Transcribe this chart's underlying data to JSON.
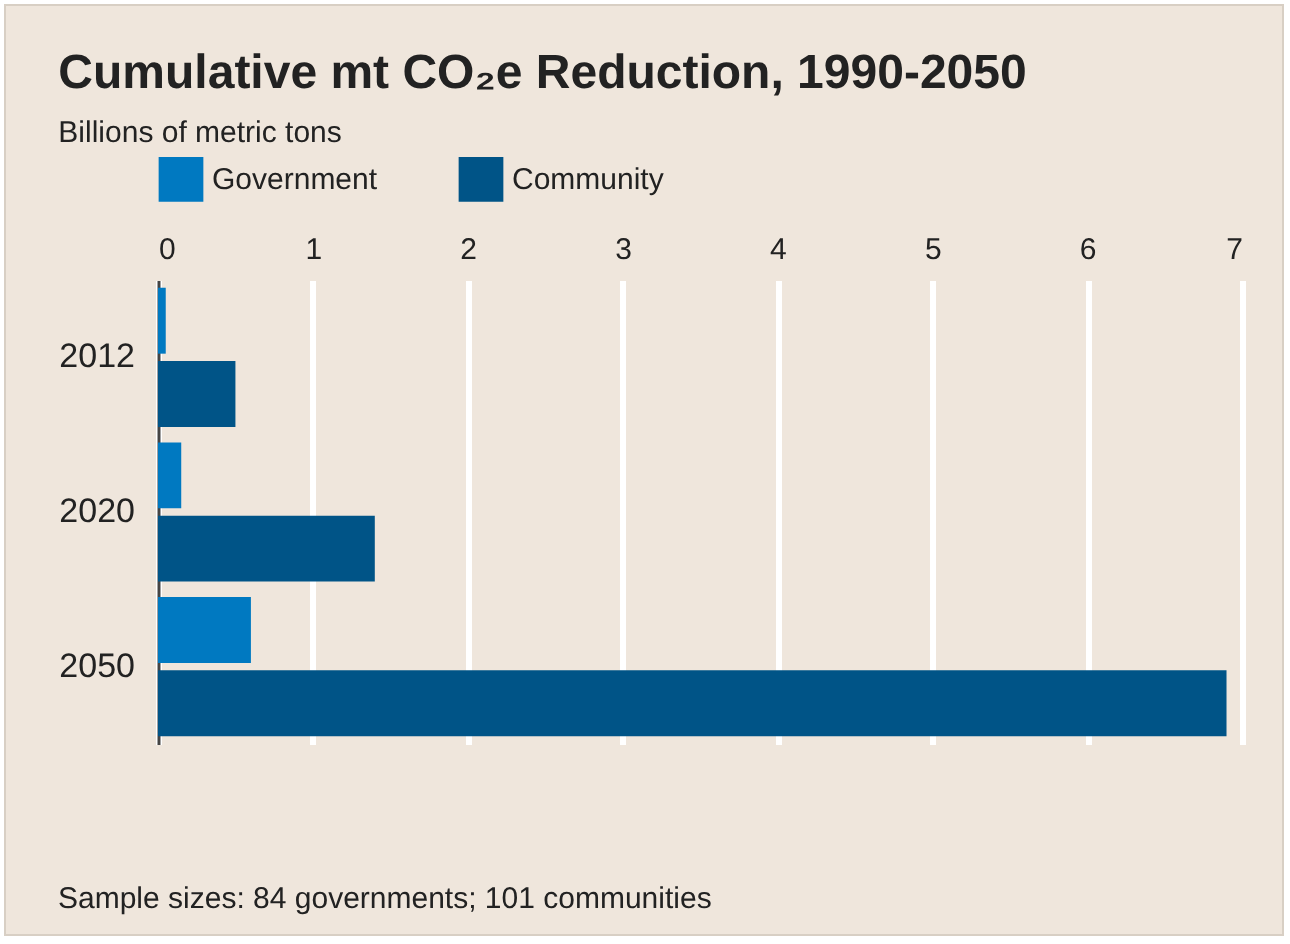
{
  "chart_data": {
    "type": "bar",
    "orientation": "horizontal",
    "title": "Cumulative mt CO₂e Reduction, 1990-2050",
    "subtitle": "Billions of metric tons",
    "categories": [
      "2012",
      "2020",
      "2050"
    ],
    "series": [
      {
        "name": "Government",
        "color": "#0079c1",
        "values": [
          0.05,
          0.15,
          0.6
        ]
      },
      {
        "name": "Community",
        "color": "#005487",
        "values": [
          0.5,
          1.4,
          6.9
        ]
      }
    ],
    "xlim": [
      0,
      7
    ],
    "xticks": [
      0,
      1,
      2,
      3,
      4,
      5,
      6,
      7
    ],
    "grid": "x",
    "legend": "top left",
    "annotations": [
      "Sample sizes: 84 governments; 101 communities"
    ]
  }
}
